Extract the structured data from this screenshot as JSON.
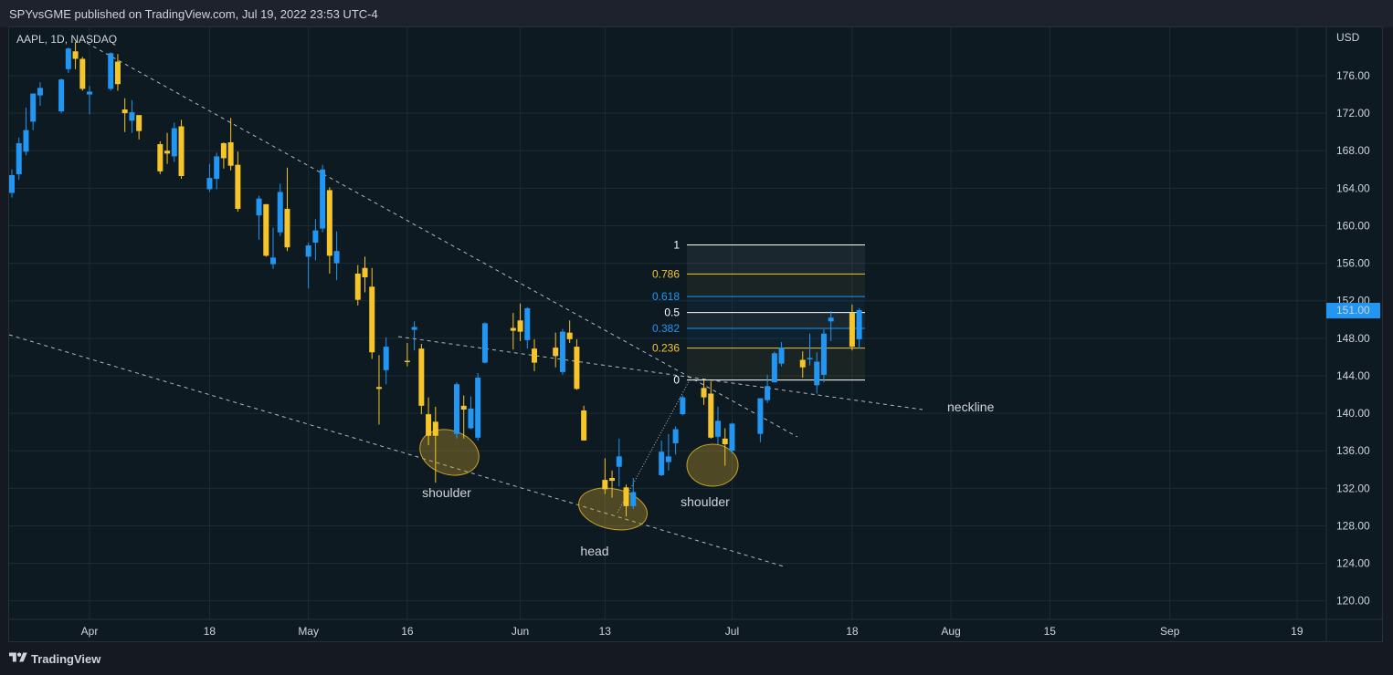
{
  "header": {
    "text": "SPYvsGME published on TradingView.com, Jul 19, 2022 23:53 UTC-4"
  },
  "footer": {
    "brand": "TradingView"
  },
  "chart_data": {
    "type": "candlestick",
    "symbol_label": "AAPL, 1D, NASDAQ",
    "currency": "USD",
    "last_price": "151.00",
    "colors": {
      "up": "#2196f3",
      "down": "#f5c52b",
      "grid": "#1c2b34",
      "dashed": "#d1d4dc",
      "ellipse": "#c9a227",
      "price_badge": "#2196f3"
    },
    "y_ticks": [
      "176.00",
      "172.00",
      "168.00",
      "164.00",
      "160.00",
      "156.00",
      "152.00",
      "148.00",
      "144.00",
      "140.00",
      "136.00",
      "132.00",
      "128.00",
      "124.00",
      "120.00"
    ],
    "x_ticks": [
      "Apr",
      "18",
      "May",
      "16",
      "Jun",
      "13",
      "Jul",
      "18",
      "Aug",
      "15",
      "Sep",
      "19"
    ],
    "ylim": [
      118.5,
      179
    ],
    "candles": [
      {
        "d": "2022-03-21",
        "o": 163.5,
        "h": 166.0,
        "l": 163.0,
        "c": 165.4
      },
      {
        "d": "2022-03-22",
        "o": 165.5,
        "h": 169.4,
        "l": 164.9,
        "c": 168.8
      },
      {
        "d": "2022-03-23",
        "o": 167.9,
        "h": 172.6,
        "l": 167.5,
        "c": 170.2
      },
      {
        "d": "2022-03-24",
        "o": 171.1,
        "h": 174.1,
        "l": 170.2,
        "c": 174.1
      },
      {
        "d": "2022-03-25",
        "o": 173.9,
        "h": 175.3,
        "l": 172.8,
        "c": 174.7
      },
      {
        "d": "2022-03-28",
        "o": 172.2,
        "h": 175.7,
        "l": 172.0,
        "c": 175.6
      },
      {
        "d": "2022-03-29",
        "o": 176.7,
        "h": 179.0,
        "l": 176.3,
        "c": 178.9
      },
      {
        "d": "2022-03-30",
        "o": 178.6,
        "h": 179.6,
        "l": 176.7,
        "c": 177.8
      },
      {
        "d": "2022-03-31",
        "o": 177.8,
        "h": 178.0,
        "l": 174.4,
        "c": 174.6
      },
      {
        "d": "2022-04-01",
        "o": 174.0,
        "h": 174.9,
        "l": 171.9,
        "c": 174.3
      },
      {
        "d": "2022-04-04",
        "o": 174.6,
        "h": 178.5,
        "l": 174.4,
        "c": 178.4
      },
      {
        "d": "2022-04-05",
        "o": 177.5,
        "h": 178.3,
        "l": 174.4,
        "c": 175.1
      },
      {
        "d": "2022-04-06",
        "o": 172.4,
        "h": 173.6,
        "l": 170.0,
        "c": 172.0
      },
      {
        "d": "2022-04-07",
        "o": 171.2,
        "h": 173.4,
        "l": 169.9,
        "c": 172.1
      },
      {
        "d": "2022-04-08",
        "o": 171.8,
        "h": 171.8,
        "l": 169.2,
        "c": 170.1
      },
      {
        "d": "2022-04-11",
        "o": 168.7,
        "h": 169.0,
        "l": 165.5,
        "c": 165.8
      },
      {
        "d": "2022-04-12",
        "o": 168.0,
        "h": 169.9,
        "l": 166.6,
        "c": 167.7
      },
      {
        "d": "2022-04-13",
        "o": 167.4,
        "h": 171.0,
        "l": 166.8,
        "c": 170.4
      },
      {
        "d": "2022-04-14",
        "o": 170.6,
        "h": 171.3,
        "l": 165.0,
        "c": 165.3
      },
      {
        "d": "2022-04-18",
        "o": 163.9,
        "h": 166.6,
        "l": 163.6,
        "c": 165.1
      },
      {
        "d": "2022-04-19",
        "o": 165.0,
        "h": 167.8,
        "l": 163.9,
        "c": 167.4
      },
      {
        "d": "2022-04-20",
        "o": 168.8,
        "h": 168.9,
        "l": 166.1,
        "c": 167.2
      },
      {
        "d": "2022-04-21",
        "o": 168.9,
        "h": 171.5,
        "l": 165.9,
        "c": 166.4
      },
      {
        "d": "2022-04-22",
        "o": 166.5,
        "h": 167.9,
        "l": 161.5,
        "c": 161.8
      },
      {
        "d": "2022-04-25",
        "o": 161.1,
        "h": 163.2,
        "l": 158.5,
        "c": 162.9
      },
      {
        "d": "2022-04-26",
        "o": 162.3,
        "h": 162.3,
        "l": 156.7,
        "c": 156.8
      },
      {
        "d": "2022-04-27",
        "o": 155.9,
        "h": 159.8,
        "l": 155.4,
        "c": 156.6
      },
      {
        "d": "2022-04-28",
        "o": 159.3,
        "h": 164.5,
        "l": 158.9,
        "c": 163.6
      },
      {
        "d": "2022-04-29",
        "o": 161.8,
        "h": 166.2,
        "l": 157.3,
        "c": 157.7
      },
      {
        "d": "2022-05-02",
        "o": 156.7,
        "h": 158.2,
        "l": 153.3,
        "c": 157.9
      },
      {
        "d": "2022-05-03",
        "o": 158.2,
        "h": 160.7,
        "l": 156.3,
        "c": 159.5
      },
      {
        "d": "2022-05-04",
        "o": 159.7,
        "h": 166.5,
        "l": 159.3,
        "c": 166.0
      },
      {
        "d": "2022-05-05",
        "o": 163.8,
        "h": 164.1,
        "l": 154.9,
        "c": 156.8
      },
      {
        "d": "2022-05-06",
        "o": 156.0,
        "h": 159.4,
        "l": 154.2,
        "c": 157.3
      },
      {
        "d": "2022-05-09",
        "o": 154.9,
        "h": 155.8,
        "l": 151.5,
        "c": 152.1
      },
      {
        "d": "2022-05-10",
        "o": 155.5,
        "h": 156.7,
        "l": 152.9,
        "c": 154.5
      },
      {
        "d": "2022-05-11",
        "o": 153.5,
        "h": 155.5,
        "l": 145.8,
        "c": 146.5
      },
      {
        "d": "2022-05-12",
        "o": 142.8,
        "h": 146.2,
        "l": 138.8,
        "c": 142.6
      },
      {
        "d": "2022-05-13",
        "o": 144.6,
        "h": 148.1,
        "l": 143.1,
        "c": 147.1
      },
      {
        "d": "2022-05-16",
        "o": 145.6,
        "h": 147.5,
        "l": 145.0,
        "c": 145.5
      },
      {
        "d": "2022-05-17",
        "o": 148.9,
        "h": 149.8,
        "l": 146.7,
        "c": 149.2
      },
      {
        "d": "2022-05-18",
        "o": 146.9,
        "h": 147.4,
        "l": 139.9,
        "c": 140.8
      },
      {
        "d": "2022-05-19",
        "o": 139.9,
        "h": 141.7,
        "l": 136.6,
        "c": 137.6
      },
      {
        "d": "2022-05-20",
        "o": 139.1,
        "h": 140.7,
        "l": 132.6,
        "c": 137.6
      },
      {
        "d": "2022-05-23",
        "o": 137.8,
        "h": 143.3,
        "l": 137.3,
        "c": 143.1
      },
      {
        "d": "2022-05-24",
        "o": 140.8,
        "h": 141.9,
        "l": 137.3,
        "c": 140.4
      },
      {
        "d": "2022-05-25",
        "o": 138.4,
        "h": 141.8,
        "l": 138.3,
        "c": 140.5
      },
      {
        "d": "2022-05-26",
        "o": 137.4,
        "h": 144.3,
        "l": 137.1,
        "c": 143.8
      },
      {
        "d": "2022-05-27",
        "o": 145.4,
        "h": 149.7,
        "l": 145.3,
        "c": 149.6
      },
      {
        "d": "2022-05-31",
        "o": 149.1,
        "h": 150.7,
        "l": 146.8,
        "c": 148.8
      },
      {
        "d": "2022-06-01",
        "o": 149.9,
        "h": 151.7,
        "l": 147.7,
        "c": 148.7
      },
      {
        "d": "2022-06-02",
        "o": 147.8,
        "h": 151.3,
        "l": 146.9,
        "c": 151.2
      },
      {
        "d": "2022-06-03",
        "o": 146.9,
        "h": 147.9,
        "l": 144.5,
        "c": 145.4
      },
      {
        "d": "2022-06-06",
        "o": 147.0,
        "h": 148.6,
        "l": 144.9,
        "c": 146.1
      },
      {
        "d": "2022-06-07",
        "o": 144.4,
        "h": 149.0,
        "l": 144.1,
        "c": 148.7
      },
      {
        "d": "2022-06-08",
        "o": 148.6,
        "h": 149.9,
        "l": 147.5,
        "c": 147.9
      },
      {
        "d": "2022-06-09",
        "o": 147.1,
        "h": 147.9,
        "l": 142.5,
        "c": 142.6
      },
      {
        "d": "2022-06-10",
        "o": 140.3,
        "h": 140.8,
        "l": 137.1,
        "c": 137.1
      },
      {
        "d": "2022-06-13",
        "o": 132.9,
        "h": 135.2,
        "l": 131.4,
        "c": 131.9
      },
      {
        "d": "2022-06-14",
        "o": 133.1,
        "h": 133.9,
        "l": 131.0,
        "c": 132.8
      },
      {
        "d": "2022-06-15",
        "o": 134.3,
        "h": 137.3,
        "l": 132.2,
        "c": 135.4
      },
      {
        "d": "2022-06-16",
        "o": 132.1,
        "h": 132.4,
        "l": 129.0,
        "c": 130.1
      },
      {
        "d": "2022-06-17",
        "o": 130.1,
        "h": 133.1,
        "l": 129.8,
        "c": 131.6
      },
      {
        "d": "2022-06-21",
        "o": 133.4,
        "h": 137.1,
        "l": 133.3,
        "c": 135.9
      },
      {
        "d": "2022-06-22",
        "o": 134.8,
        "h": 137.8,
        "l": 133.9,
        "c": 135.4
      },
      {
        "d": "2022-06-23",
        "o": 136.8,
        "h": 138.6,
        "l": 135.6,
        "c": 138.3
      },
      {
        "d": "2022-06-24",
        "o": 139.9,
        "h": 141.9,
        "l": 139.8,
        "c": 141.7
      },
      {
        "d": "2022-06-27",
        "o": 142.7,
        "h": 143.5,
        "l": 140.9,
        "c": 141.7
      },
      {
        "d": "2022-06-28",
        "o": 142.1,
        "h": 143.4,
        "l": 137.3,
        "c": 137.4
      },
      {
        "d": "2022-06-29",
        "o": 137.5,
        "h": 140.7,
        "l": 136.7,
        "c": 139.2
      },
      {
        "d": "2022-06-30",
        "o": 137.3,
        "h": 138.4,
        "l": 134.4,
        "c": 136.7
      },
      {
        "d": "2022-07-01",
        "o": 136.0,
        "h": 139.0,
        "l": 135.7,
        "c": 138.9
      },
      {
        "d": "2022-07-05",
        "o": 137.8,
        "h": 141.6,
        "l": 136.9,
        "c": 141.6
      },
      {
        "d": "2022-07-06",
        "o": 141.4,
        "h": 144.1,
        "l": 141.1,
        "c": 142.9
      },
      {
        "d": "2022-07-07",
        "o": 143.3,
        "h": 146.6,
        "l": 143.3,
        "c": 146.4
      },
      {
        "d": "2022-07-08",
        "o": 145.3,
        "h": 147.6,
        "l": 145.0,
        "c": 147.0
      },
      {
        "d": "2022-07-11",
        "o": 145.7,
        "h": 146.6,
        "l": 143.8,
        "c": 144.9
      },
      {
        "d": "2022-07-12",
        "o": 145.8,
        "h": 148.5,
        "l": 145.1,
        "c": 145.9
      },
      {
        "d": "2022-07-13",
        "o": 142.99,
        "h": 146.5,
        "l": 142.1,
        "c": 145.5
      },
      {
        "d": "2022-07-14",
        "o": 144.1,
        "h": 148.95,
        "l": 143.3,
        "c": 148.5
      },
      {
        "d": "2022-07-15",
        "o": 149.8,
        "h": 150.9,
        "l": 147.7,
        "c": 150.2
      },
      {
        "d": "2022-07-18",
        "o": 150.7,
        "h": 151.6,
        "l": 146.7,
        "c": 147.1
      },
      {
        "d": "2022-07-19",
        "o": 147.9,
        "h": 151.2,
        "l": 146.9,
        "c": 151.0
      }
    ],
    "fib_levels": [
      {
        "label": "1",
        "value": 157.95,
        "color": "#ffffff"
      },
      {
        "label": "0.786",
        "value": 154.85,
        "color": "#f5c52b"
      },
      {
        "label": "0.618",
        "value": 152.45,
        "color": "#2196f3"
      },
      {
        "label": "0.5",
        "value": 150.75,
        "color": "#ffffff"
      },
      {
        "label": "0.382",
        "value": 149.05,
        "color": "#2196f3"
      },
      {
        "label": "0.236",
        "value": 146.95,
        "color": "#f5c52b"
      },
      {
        "label": "0",
        "value": 143.55,
        "color": "#ffffff"
      }
    ],
    "annotations": {
      "left_shoulder": "shoulder",
      "head": "head",
      "right_shoulder": "shoulder",
      "neckline": "neckline"
    }
  }
}
